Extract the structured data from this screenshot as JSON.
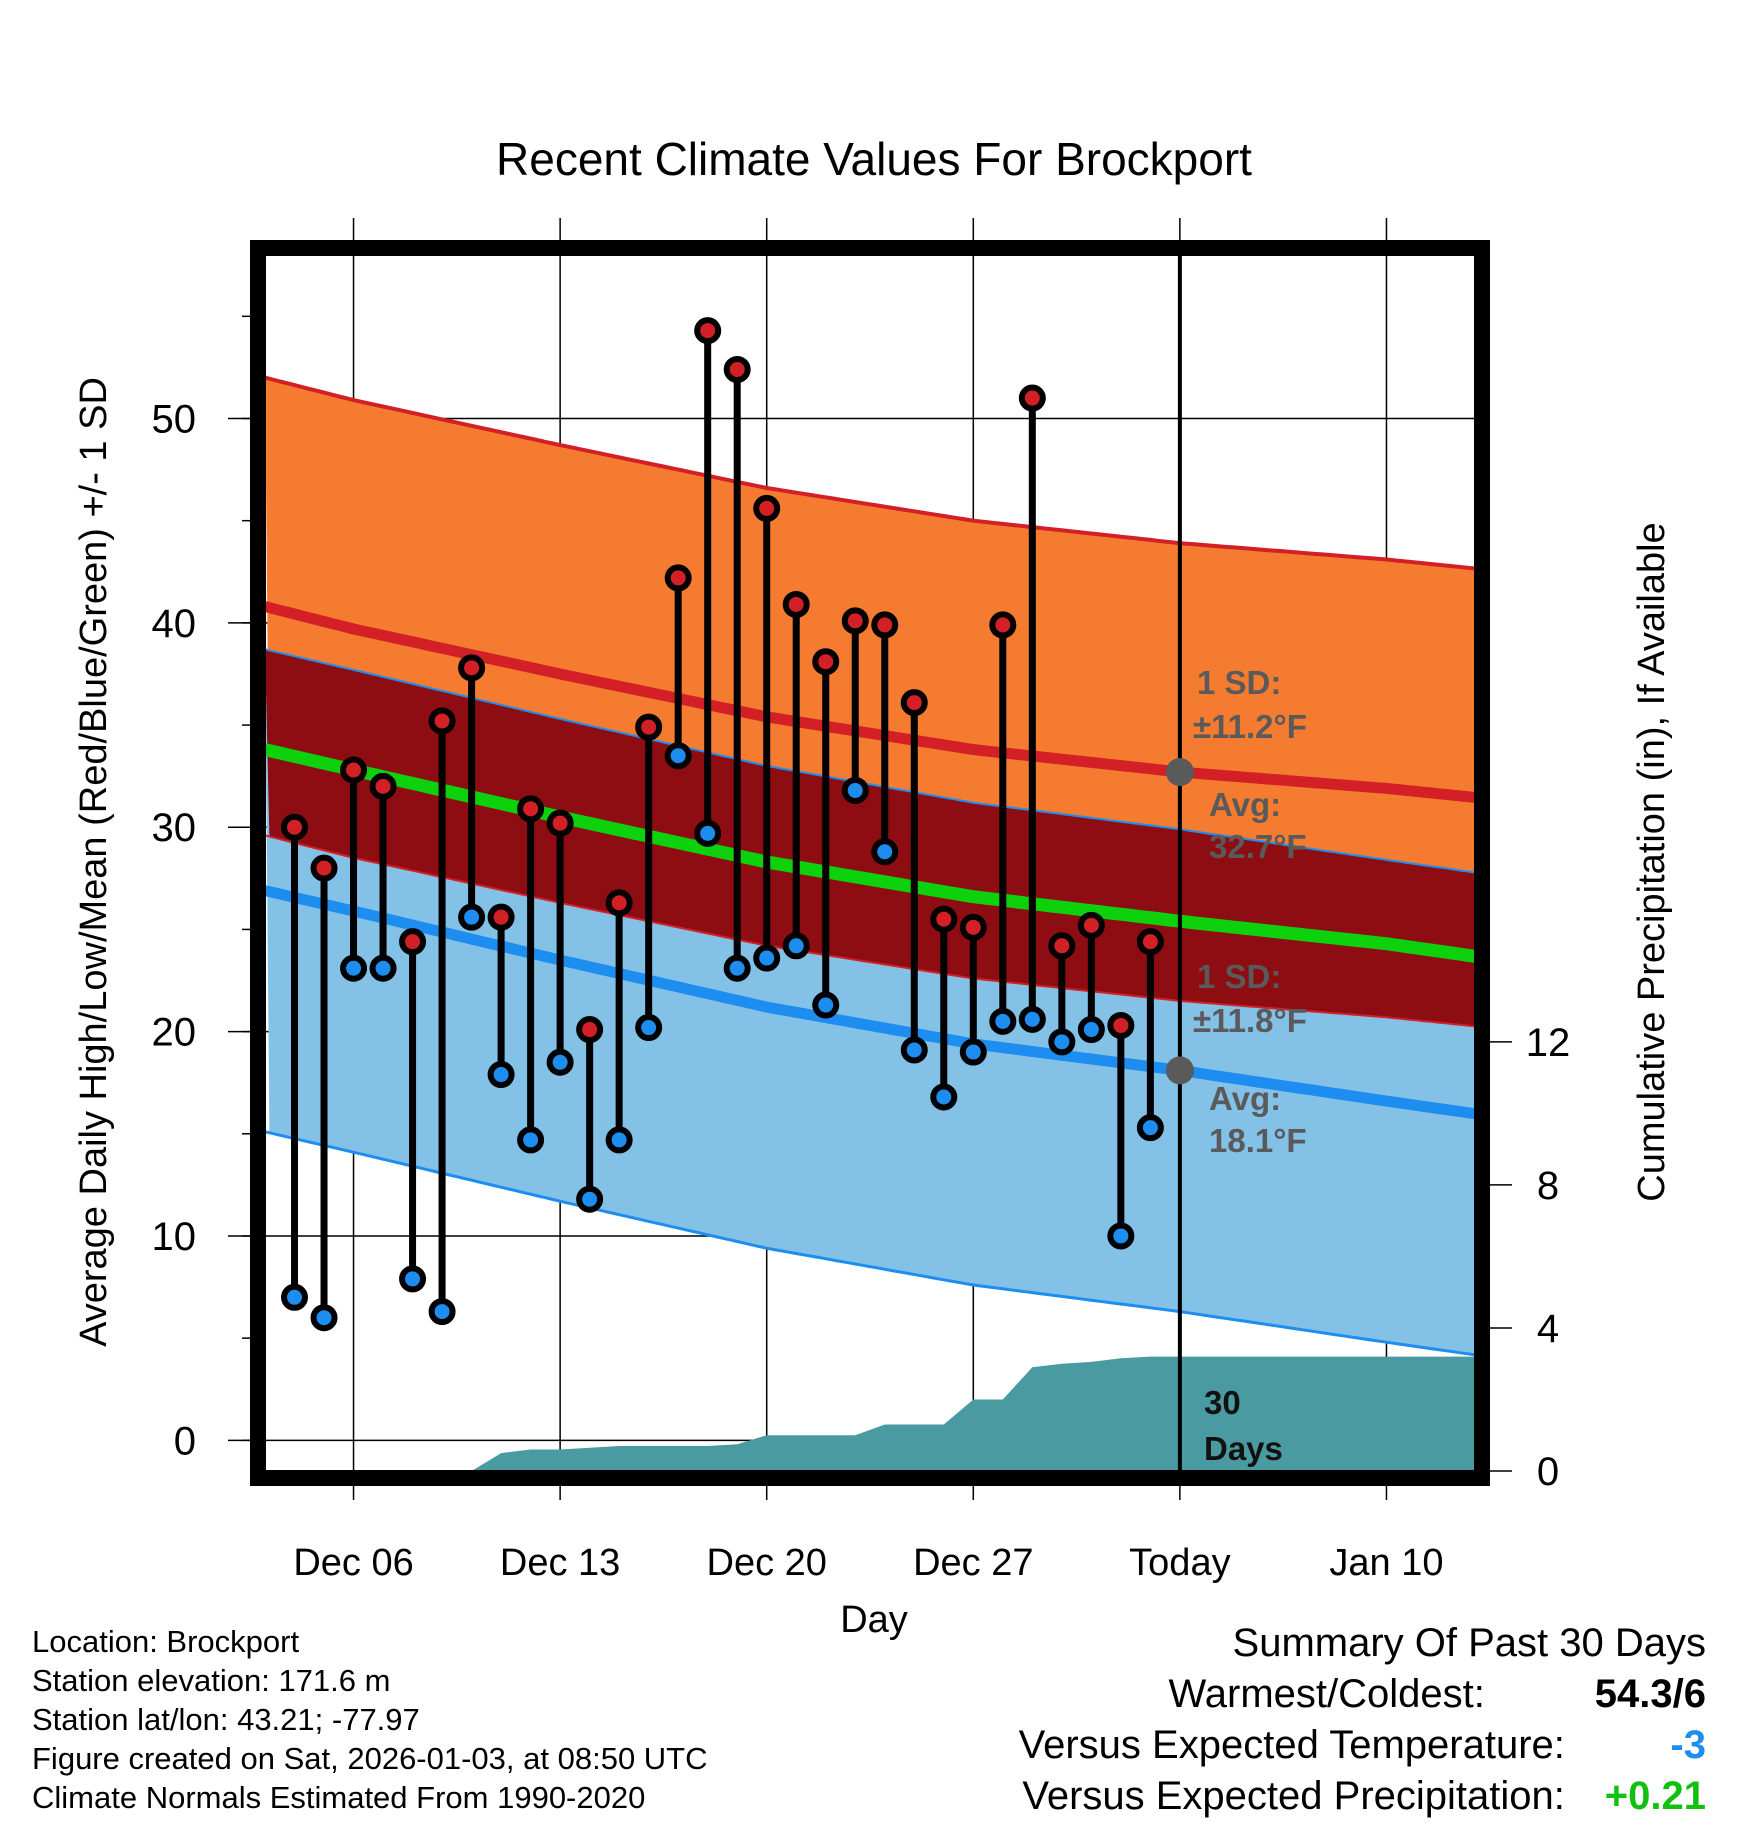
{
  "chart_data": {
    "type": "line",
    "title": "Recent Climate Values For Brockport",
    "xlabel": "Day",
    "ylabel": "Average Daily High/Low/Mean (Red/Blue/Green) +/- 1 SD",
    "ylabel_right": "Cumulative Precipitation (in), If Available",
    "ylim": [
      -1.5,
      58
    ],
    "ylim_right": [
      0,
      34
    ],
    "y_ticks": [
      0,
      10,
      20,
      30,
      40,
      50
    ],
    "y_ticks_right": [
      0,
      4,
      8,
      12
    ],
    "xlim": [
      -3,
      38
    ],
    "x_ticks": [
      {
        "x": 0,
        "label": "Dec 06"
      },
      {
        "x": 7,
        "label": "Dec 13"
      },
      {
        "x": 14,
        "label": "Dec 20"
      },
      {
        "x": 21,
        "label": "Dec 27"
      },
      {
        "x": 28,
        "label": "Today"
      },
      {
        "x": 35,
        "label": "Jan 10"
      }
    ],
    "grid": true,
    "days": [
      -2,
      -1,
      0,
      1,
      2,
      3,
      4,
      5,
      6,
      7,
      8,
      9,
      10,
      11,
      12,
      13,
      14,
      15,
      16,
      17,
      18,
      19,
      20,
      21,
      22,
      23,
      24,
      25,
      26,
      27
    ],
    "highs": [
      30.0,
      28.0,
      32.8,
      32.0,
      24.4,
      35.2,
      37.8,
      25.6,
      30.9,
      30.2,
      20.1,
      26.3,
      34.9,
      42.2,
      54.3,
      52.4,
      45.6,
      40.9,
      38.1,
      40.1,
      39.9,
      36.1,
      25.5,
      25.1,
      39.9,
      51.0,
      24.2,
      25.2,
      20.3,
      24.4
    ],
    "lows": [
      7.0,
      6.0,
      23.1,
      23.1,
      7.9,
      6.3,
      25.6,
      17.9,
      14.7,
      18.5,
      11.8,
      14.7,
      20.2,
      33.5,
      29.7,
      23.1,
      23.6,
      24.2,
      21.3,
      31.8,
      28.8,
      19.1,
      16.8,
      19.0,
      20.5,
      20.6,
      19.5,
      20.1,
      10.0,
      15.3
    ],
    "normal_high": {
      "name": "Average high",
      "x": [
        -3,
        0,
        7,
        14,
        21,
        28,
        35,
        38.4
      ],
      "values": [
        40.8,
        39.7,
        37.5,
        35.4,
        33.8,
        32.7,
        31.9,
        31.4
      ]
    },
    "normal_low": {
      "name": "Average low",
      "x": [
        -3,
        0,
        7,
        14,
        21,
        28,
        35,
        38.4
      ],
      "values": [
        26.9,
        25.9,
        23.5,
        21.2,
        19.4,
        18.1,
        16.6,
        15.9
      ]
    },
    "normal_mean": {
      "name": "Average mean",
      "x": [
        -3,
        0,
        7,
        14,
        21,
        28,
        35,
        38.4
      ],
      "values": [
        33.8,
        32.8,
        30.5,
        28.3,
        26.6,
        25.4,
        24.3,
        23.6
      ]
    },
    "high_sd": 11.2,
    "low_sd": 11.8,
    "precip": {
      "x": [
        -3,
        0,
        1,
        2,
        3,
        4,
        5,
        6,
        7,
        8,
        9,
        10,
        11,
        12,
        13,
        14,
        15,
        16,
        17,
        18,
        19,
        20,
        21,
        22,
        23,
        24,
        25,
        26,
        27,
        28,
        38.4
      ],
      "values": [
        0,
        0,
        0,
        0,
        0,
        0,
        0.5,
        0.6,
        0.6,
        0.65,
        0.7,
        0.7,
        0.7,
        0.7,
        0.75,
        1.0,
        1.0,
        1.0,
        1.0,
        1.3,
        1.3,
        1.3,
        2.0,
        2.0,
        2.9,
        3.0,
        3.05,
        3.15,
        3.2,
        3.2,
        3.2
      ]
    },
    "annotations": {
      "high_sd_label": "1 SD:",
      "high_sd_value": "±11.2°F",
      "high_avg_label": "Avg:",
      "high_avg_value": "32.7°F",
      "low_sd_label": "1 SD:",
      "low_sd_value": "±11.8°F",
      "low_avg_label": "Avg:",
      "low_avg_value": "18.1°F",
      "days_number": "30",
      "days_word": "Days"
    },
    "colors": {
      "high_band": "#f47b2f",
      "overlap_band": "#8d0d13",
      "low_band": "#84c1e7",
      "high_line": "#d32027",
      "low_line": "#1d8ef0",
      "mean_line": "#0dd10d",
      "precip": "#4a9aa2",
      "high_dot": "#d32027",
      "low_dot": "#1d8ef0",
      "annotation": "#5a5a5a"
    }
  },
  "info": {
    "location": "Location: Brockport",
    "elevation": "Station elevation: 171.6 m",
    "latlon": "Station lat/lon: 43.21; -77.97",
    "created": "Figure created on Sat, 2026-01-03, at 08:50 UTC",
    "normals": "Climate Normals Estimated From 1990-2020"
  },
  "summary": {
    "title": "Summary Of Past 30 Days",
    "warmest_label": "Warmest/Coldest:",
    "warmest_value": "54.3/6",
    "temp_label": "Versus Expected Temperature:",
    "temp_value": "-3",
    "temp_color": "#1d8ef0",
    "precip_label": "Versus Expected Precipitation:",
    "precip_value": "+0.21",
    "precip_color": "#12c012"
  }
}
